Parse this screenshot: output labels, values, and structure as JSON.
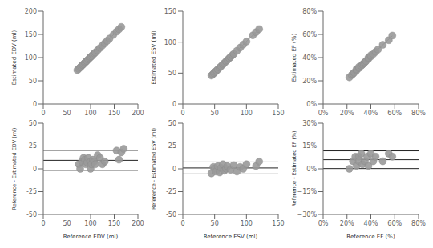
{
  "chart_data": [
    {
      "type": "scatter",
      "y_label": "Estimated EDV (ml)",
      "xlim": [
        0,
        200
      ],
      "ylim": [
        0,
        200
      ],
      "xticks": [
        0,
        50,
        100,
        150,
        200
      ],
      "yticks": [
        0,
        50,
        100,
        150,
        200
      ],
      "grid": false,
      "series": [
        {
          "type": "scatter",
          "color": "#999999",
          "x": [
            72,
            75,
            78,
            80,
            83,
            85,
            88,
            90,
            92,
            95,
            98,
            100,
            102,
            105,
            108,
            110,
            115,
            120,
            125,
            130,
            135,
            140,
            148,
            155,
            160,
            165
          ],
          "values": [
            73,
            76,
            79,
            81,
            84,
            86,
            89,
            91,
            93,
            96,
            99,
            101,
            103,
            106,
            109,
            111,
            116,
            121,
            126,
            131,
            136,
            141,
            149,
            156,
            161,
            166
          ]
        },
        {
          "type": "line",
          "color": "#666666",
          "x": [
            72,
            165
          ],
          "values": [
            73,
            166
          ]
        }
      ]
    },
    {
      "type": "scatter",
      "y_label": "Estimated ESV (ml)",
      "xlim": [
        0,
        150
      ],
      "ylim": [
        0,
        150
      ],
      "xticks": [
        0,
        50,
        100,
        150
      ],
      "yticks": [
        0,
        50,
        100,
        150
      ],
      "grid": false,
      "series": [
        {
          "type": "scatter",
          "color": "#999999",
          "x": [
            45,
            47,
            49,
            51,
            53,
            55,
            58,
            60,
            63,
            65,
            68,
            70,
            73,
            75,
            78,
            80,
            85,
            90,
            95,
            100,
            110,
            115,
            120
          ],
          "values": [
            46,
            48,
            50,
            52,
            54,
            56,
            59,
            61,
            64,
            66,
            69,
            71,
            74,
            76,
            79,
            81,
            86,
            91,
            96,
            101,
            111,
            116,
            121
          ]
        },
        {
          "type": "line",
          "color": "#666666",
          "x": [
            45,
            120
          ],
          "values": [
            46,
            121
          ]
        }
      ]
    },
    {
      "type": "scatter",
      "y_label": "Estimated EF (%)",
      "xlim": [
        0,
        0.8
      ],
      "ylim": [
        0,
        0.8
      ],
      "xticks": [
        {
          "value": 0,
          "label": "0%"
        },
        {
          "value": 0.2,
          "label": "20%"
        },
        {
          "value": 0.4,
          "label": "40%"
        },
        {
          "value": 0.6,
          "label": "60%"
        },
        {
          "value": 0.8,
          "label": "80%"
        }
      ],
      "yticks": [
        {
          "value": 0,
          "label": "0%"
        },
        {
          "value": 0.2,
          "label": "20%"
        },
        {
          "value": 0.4,
          "label": "40%"
        },
        {
          "value": 0.6,
          "label": "60%"
        },
        {
          "value": 0.8,
          "label": "80%"
        }
      ],
      "grid": false,
      "series": [
        {
          "type": "scatter",
          "color": "#999999",
          "x": [
            0.22,
            0.24,
            0.25,
            0.26,
            0.28,
            0.28,
            0.3,
            0.3,
            0.32,
            0.33,
            0.34,
            0.35,
            0.36,
            0.38,
            0.38,
            0.4,
            0.4,
            0.42,
            0.44,
            0.46,
            0.5,
            0.55,
            0.58
          ],
          "values": [
            0.23,
            0.25,
            0.26,
            0.27,
            0.29,
            0.3,
            0.31,
            0.32,
            0.33,
            0.34,
            0.35,
            0.36,
            0.37,
            0.39,
            0.4,
            0.41,
            0.42,
            0.43,
            0.45,
            0.47,
            0.51,
            0.55,
            0.59
          ]
        },
        {
          "type": "line",
          "color": "#666666",
          "x": [
            0.22,
            0.58
          ],
          "values": [
            0.2332,
            0.5884
          ]
        }
      ]
    },
    {
      "type": "scatter",
      "x_label": "Reference EDV (ml)",
      "y_label": "Reference - Estimated EDV (ml)",
      "xlim": [
        0,
        200
      ],
      "ylim": [
        -50,
        50
      ],
      "xticks": [
        0,
        50,
        100,
        150,
        200
      ],
      "yticks": [
        -50,
        -25,
        0,
        25,
        50
      ],
      "grid": false,
      "series": [
        {
          "type": "scatter",
          "color": "#999999",
          "x": [
            75,
            78,
            82,
            85,
            88,
            90,
            93,
            95,
            100,
            100,
            102,
            105,
            108,
            110,
            115,
            120,
            125,
            130,
            155,
            160,
            165,
            170
          ],
          "values": [
            5,
            0,
            8,
            12,
            10,
            5,
            7,
            12,
            8,
            0,
            5,
            10,
            8,
            5,
            15,
            12,
            5,
            8,
            20,
            10,
            18,
            22
          ]
        }
      ],
      "reference_lines": [
        {
          "value": 9.32,
          "color": "#222222"
        },
        {
          "value": 20.25,
          "color": "#222222"
        },
        {
          "value": -1.62,
          "color": "#222222"
        }
      ]
    },
    {
      "type": "scatter",
      "x_label": "Reference ESV (ml)",
      "y_label": "Reference - Estimated ESV (ml)",
      "xlim": [
        0,
        150
      ],
      "ylim": [
        -50,
        50
      ],
      "xticks": [
        0,
        50,
        100,
        150
      ],
      "yticks": [
        -50,
        -25,
        0,
        25,
        50
      ],
      "grid": false,
      "series": [
        {
          "type": "scatter",
          "color": "#999999",
          "x": [
            45,
            48,
            50,
            52,
            55,
            58,
            60,
            63,
            65,
            68,
            70,
            75,
            80,
            85,
            90,
            95,
            100,
            115,
            120
          ],
          "values": [
            -5,
            2,
            0,
            -3,
            3,
            -4,
            1,
            5,
            -2,
            0,
            3,
            -1,
            4,
            -3,
            2,
            0,
            5,
            3,
            8
          ]
        }
      ],
      "reference_lines": [
        {
          "value": 0.95,
          "color": "#222222"
        },
        {
          "value": 7.51,
          "color": "#222222"
        },
        {
          "value": -5.61,
          "color": "#222222"
        }
      ]
    },
    {
      "type": "scatter",
      "x_label": "Reference EF (%)",
      "y_label": "Reference - Estimated EF (%)",
      "xlim": [
        0,
        0.8
      ],
      "ylim": [
        -0.3,
        0.3
      ],
      "xticks": [
        {
          "value": 0,
          "label": "0%"
        },
        {
          "value": 0.2,
          "label": "20%"
        },
        {
          "value": 0.4,
          "label": "40%"
        },
        {
          "value": 0.6,
          "label": "60%"
        },
        {
          "value": 0.8,
          "label": "80%"
        }
      ],
      "yticks": [
        {
          "value": -0.3,
          "label": "−30%"
        },
        {
          "value": -0.15,
          "label": "−15%"
        },
        {
          "value": 0,
          "label": "0%"
        },
        {
          "value": 0.15,
          "label": "15%"
        },
        {
          "value": 0.3,
          "label": "30%"
        }
      ],
      "grid": false,
      "series": [
        {
          "type": "scatter",
          "color": "#999999",
          "x": [
            0.22,
            0.25,
            0.27,
            0.28,
            0.3,
            0.3,
            0.32,
            0.33,
            0.35,
            0.37,
            0.38,
            0.4,
            0.42,
            0.44,
            0.5,
            0.55,
            0.58
          ],
          "values": [
            0.0,
            0.05,
            0.08,
            0.02,
            0.08,
            0.05,
            0.1,
            0.03,
            0.05,
            0.08,
            0.02,
            0.1,
            0.05,
            0.08,
            0.05,
            0.1,
            0.08
          ]
        }
      ],
      "reference_lines": [
        {
          "value": 0.06,
          "color": "#222222"
        },
        {
          "value": 0.1182,
          "color": "#222222"
        },
        {
          "value": 0.0018,
          "color": "#222222"
        }
      ]
    }
  ]
}
